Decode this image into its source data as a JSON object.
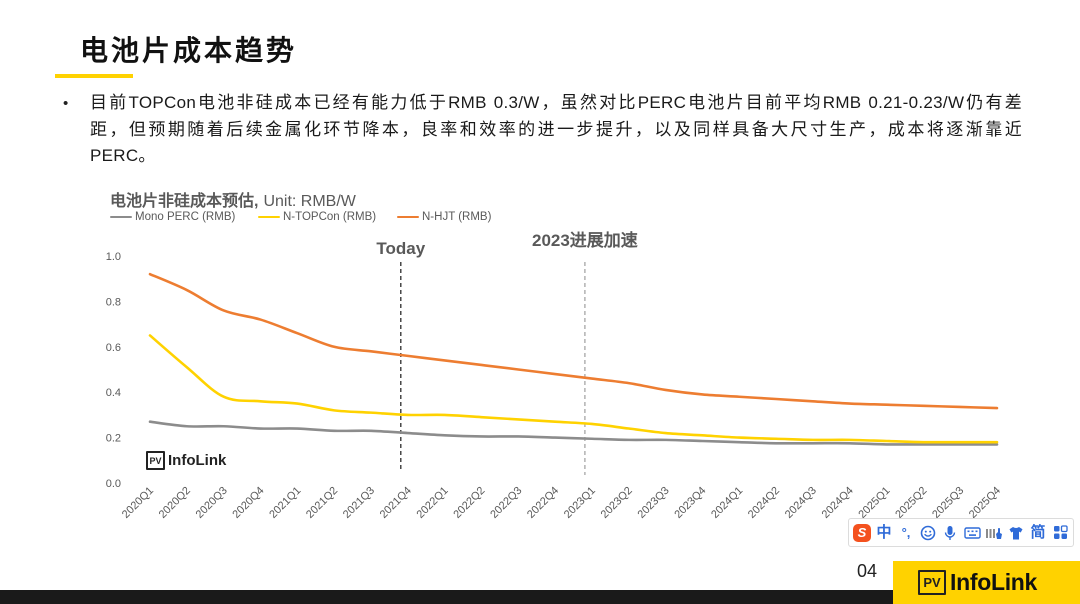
{
  "colors": {
    "brand_yellow": "#ffd200",
    "footer_bar": "#1a1a1a",
    "ime_blue": "#2f6bd8",
    "sogou_orange": "#f4511e"
  },
  "slide": {
    "title": "电池片成本趋势",
    "bullet_symbol": "•",
    "bullet_lines": [
      "目前TOPCon电池非硅成本已经有能力低于RMB  0.3/W，虽然对比PERC电池片目前平均RMB  0.21-0.23/W仍有差",
      "距，但预期随着后续金属化环节降本，良率和效率的进一步提升，以及同样具备大尺寸生产，成本将逐渐靠近",
      "PERC。"
    ],
    "page_number": "04"
  },
  "chart_data": {
    "type": "line",
    "title": "电池片非硅成本预估,",
    "unit_label": "Unit: RMB/W",
    "xlabel": "",
    "ylabel": "",
    "legend": "top-left",
    "grid": false,
    "ylim": [
      0,
      1.0
    ],
    "y_tick_labels": [
      "0.0",
      "0.2",
      "0.4",
      "0.6",
      "0.8",
      "1.0"
    ],
    "categories": [
      "2020Q1",
      "2020Q2",
      "2020Q3",
      "2020Q4",
      "2021Q1",
      "2021Q2",
      "2021Q3",
      "2021Q4",
      "2022Q1",
      "2022Q2",
      "2022Q3",
      "2022Q4",
      "2023Q1",
      "2023Q2",
      "2023Q3",
      "2023Q4",
      "2024Q1",
      "2024Q2",
      "2024Q3",
      "2024Q4",
      "2025Q1",
      "2025Q2",
      "2025Q3",
      "2025Q4"
    ],
    "series": [
      {
        "name": "Mono PERC (RMB)",
        "color": "#8c8c8c",
        "values": [
          0.27,
          0.25,
          0.25,
          0.24,
          0.24,
          0.23,
          0.23,
          0.22,
          0.21,
          0.205,
          0.205,
          0.2,
          0.195,
          0.19,
          0.19,
          0.185,
          0.18,
          0.175,
          0.175,
          0.175,
          0.17,
          0.17,
          0.17,
          0.17
        ]
      },
      {
        "name": "N-TOPCon (RMB)",
        "color": "#ffd200",
        "values": [
          0.65,
          0.51,
          0.38,
          0.36,
          0.35,
          0.32,
          0.31,
          0.3,
          0.3,
          0.29,
          0.28,
          0.27,
          0.26,
          0.24,
          0.22,
          0.21,
          0.2,
          0.195,
          0.19,
          0.19,
          0.185,
          0.18,
          0.18,
          0.18
        ]
      },
      {
        "name": "N-HJT (RMB)",
        "color": "#ed7d31",
        "values": [
          0.92,
          0.85,
          0.76,
          0.72,
          0.66,
          0.6,
          0.58,
          0.56,
          0.54,
          0.52,
          0.5,
          0.48,
          0.46,
          0.44,
          0.41,
          0.39,
          0.38,
          0.37,
          0.36,
          0.35,
          0.345,
          0.34,
          0.335,
          0.33
        ]
      }
    ],
    "annotations": [
      {
        "label": "Today",
        "at": "2021Q4",
        "line": "dashed",
        "color": "#2b2b2b"
      },
      {
        "label": "2023进展加速",
        "at": "2023Q1",
        "line": "dashed",
        "color": "#a6a6a6"
      }
    ]
  },
  "chart_logo": {
    "pv": "PV",
    "name": "InfoLink"
  },
  "footer_logo": {
    "pv": "PV",
    "name": "InfoLink"
  },
  "ime_toolbar": {
    "logo_letter": "S",
    "lang_label": "中",
    "punct_label": "°,",
    "script_label": "简",
    "icons": [
      "sogou-logo-icon",
      "emoji-icon",
      "microphone-icon",
      "keyboard-icon",
      "toolbox-icon",
      "skin-icon",
      "apps-grid-icon"
    ]
  }
}
